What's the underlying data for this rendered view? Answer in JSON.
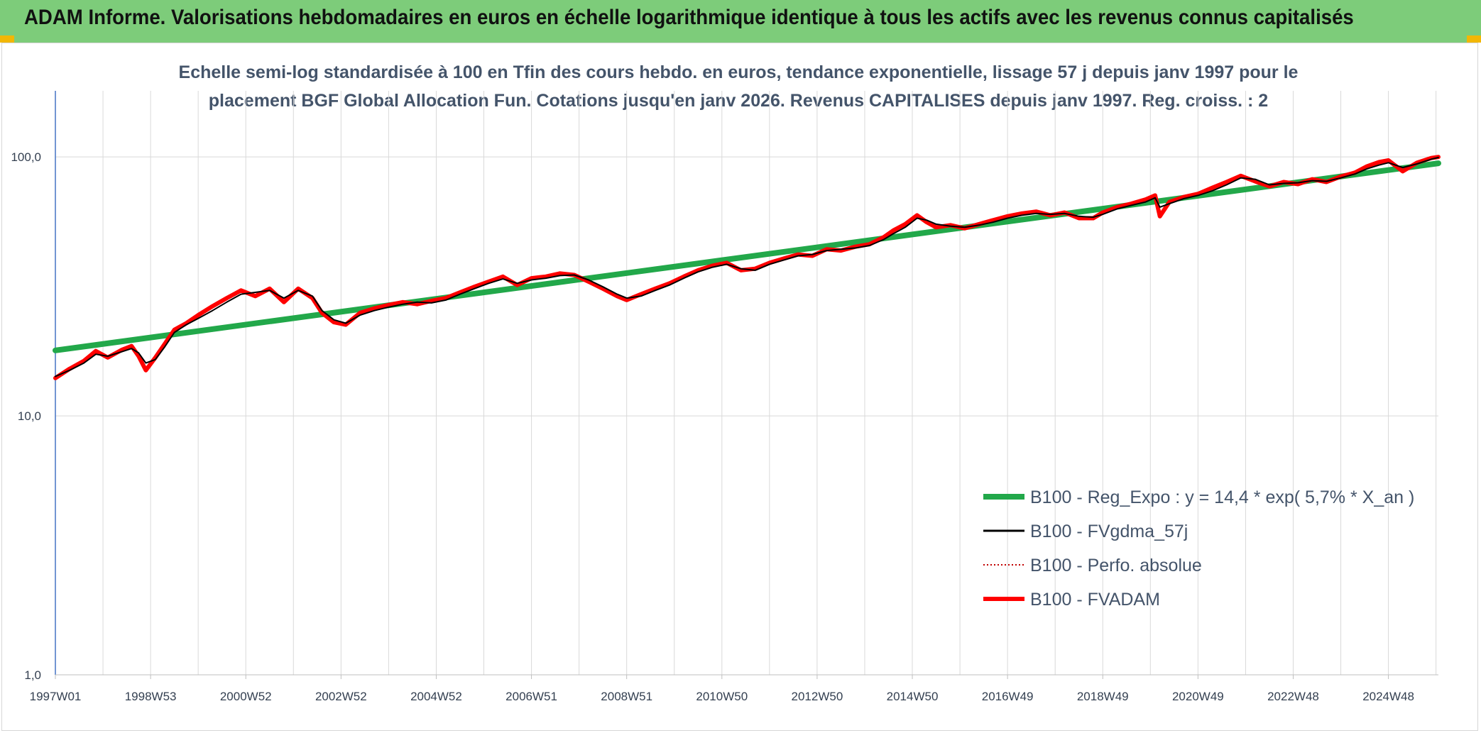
{
  "header": {
    "title": "ADAM Informe. Valorisations hebdomadaires en euros en échelle logarithmique identique à tous les actifs avec les revenus connus capitalisés"
  },
  "colors": {
    "banner": "#7dcc7a",
    "regression": "#22a84a",
    "smoothed": "#000000",
    "absolute": "#c00000",
    "fvadam": "#ff0000",
    "gridline": "#d9d9d9",
    "axis_text": "#333f50",
    "subtitle_text": "#44546a"
  },
  "chart_data": {
    "type": "line",
    "subtitle_lines": [
      "Echelle semi-log standardisée à 100 en Tfin des cours hebdo. en euros, tendance exponentielle, lissage 57 j depuis janv 1997 pour le",
      "placement BGF Global Allocation Fun. Cotations jusqu'en janv 2026. Revenus CAPITALISES depuis janv 1997. Reg. croiss. : 2"
    ],
    "y_scale": "log",
    "ylim": [
      1,
      180
    ],
    "y_ticks": [
      {
        "value": 1,
        "label": "1,0"
      },
      {
        "value": 10,
        "label": "10,0"
      },
      {
        "value": 100,
        "label": "100,0"
      }
    ],
    "x_range": [
      1997.0,
      2026.05
    ],
    "x_tick_labels": [
      "1997W01",
      "1998W53",
      "2000W52",
      "2002W52",
      "2004W52",
      "2006W51",
      "2008W51",
      "2010W50",
      "2012W50",
      "2014W50",
      "2016W49",
      "2018W49",
      "2020W49",
      "2022W48",
      "2024W48"
    ],
    "x_tick_years": [
      1997.0,
      1999.0,
      2001.0,
      2003.0,
      2005.0,
      2007.0,
      2009.0,
      2011.0,
      2013.0,
      2015.0,
      2017.0,
      2019.0,
      2021.0,
      2023.0,
      2025.0
    ],
    "grid": true,
    "legend_position": "bottom-right",
    "series": [
      {
        "key": "reg",
        "name": "B100 - Reg_Expo : y = 14,4 * exp( 5,7% *  X_an )",
        "style": "solid-thick",
        "x": [
          1997.0,
          2026.05
        ],
        "y": [
          17.9,
          94.5
        ]
      },
      {
        "key": "fvgdma",
        "name": "B100 - FVgdma_57j",
        "style": "solid-thin",
        "x": [
          1997.0,
          1997.3,
          1997.6,
          1997.85,
          1998.1,
          1998.4,
          1998.6,
          1998.75,
          1998.9,
          1999.1,
          1999.3,
          1999.5,
          1999.75,
          2000.0,
          2000.3,
          2000.6,
          2000.9,
          2001.2,
          2001.5,
          2001.8,
          2002.1,
          2002.4,
          2002.6,
          2002.85,
          2003.1,
          2003.4,
          2003.7,
          2004.0,
          2004.3,
          2004.6,
          2004.9,
          2005.2,
          2005.5,
          2005.8,
          2006.1,
          2006.4,
          2006.7,
          2007.0,
          2007.3,
          2007.6,
          2007.9,
          2008.2,
          2008.5,
          2008.8,
          2009.0,
          2009.3,
          2009.6,
          2009.9,
          2010.2,
          2010.5,
          2010.8,
          2011.1,
          2011.4,
          2011.7,
          2012.0,
          2012.3,
          2012.6,
          2012.9,
          2013.2,
          2013.5,
          2013.8,
          2014.1,
          2014.4,
          2014.6,
          2014.85,
          2015.1,
          2015.3,
          2015.5,
          2015.8,
          2016.1,
          2016.4,
          2016.7,
          2017.0,
          2017.3,
          2017.6,
          2017.9,
          2018.2,
          2018.5,
          2018.8,
          2019.0,
          2019.3,
          2019.6,
          2019.9,
          2020.1,
          2020.2,
          2020.4,
          2020.7,
          2021.0,
          2021.3,
          2021.6,
          2021.9,
          2022.2,
          2022.5,
          2022.8,
          2023.1,
          2023.4,
          2023.7,
          2024.0,
          2024.3,
          2024.55,
          2024.8,
          2025.0,
          2025.3,
          2025.6,
          2025.9,
          2026.05
        ],
        "y": [
          14.2,
          15.0,
          16.0,
          17.3,
          17.0,
          17.7,
          18.2,
          17.5,
          16.0,
          16.5,
          18.5,
          21.0,
          22.5,
          23.8,
          25.5,
          27.5,
          29.5,
          30.0,
          30.5,
          28.5,
          30.5,
          29.0,
          25.5,
          23.5,
          22.8,
          24.5,
          25.5,
          26.3,
          27.0,
          27.5,
          27.3,
          28.0,
          29.5,
          31.0,
          32.5,
          33.8,
          32.5,
          33.5,
          34.0,
          34.8,
          35.0,
          33.5,
          31.5,
          29.5,
          28.5,
          29.0,
          30.5,
          32.0,
          34.0,
          36.0,
          37.5,
          38.5,
          37.0,
          36.5,
          38.5,
          40.0,
          41.5,
          42.0,
          43.5,
          44.0,
          44.5,
          45.5,
          48.0,
          50.5,
          53.5,
          58.0,
          57.0,
          55.0,
          54.0,
          53.5,
          54.5,
          56.0,
          58.0,
          59.5,
          60.5,
          60.0,
          60.5,
          59.0,
          58.5,
          60.0,
          63.0,
          65.0,
          67.0,
          69.5,
          64.0,
          66.0,
          69.0,
          71.0,
          74.0,
          78.0,
          83.0,
          82.0,
          78.0,
          79.0,
          79.5,
          81.0,
          80.5,
          83.0,
          86.0,
          90.0,
          93.0,
          95.0,
          91.0,
          94.0,
          98.0,
          99.5
        ]
      },
      {
        "key": "perfo",
        "name": "B100 - Perfo. absolue",
        "style": "dotted",
        "x": [],
        "y": []
      },
      {
        "key": "fvadam",
        "name": "B100 - FVADAM",
        "style": "solid-thick",
        "x": [
          1997.0,
          1997.3,
          1997.6,
          1997.85,
          1998.1,
          1998.4,
          1998.6,
          1998.75,
          1998.9,
          1999.1,
          1999.3,
          1999.5,
          1999.75,
          2000.0,
          2000.3,
          2000.6,
          2000.9,
          2001.2,
          2001.5,
          2001.8,
          2002.1,
          2002.4,
          2002.6,
          2002.85,
          2003.1,
          2003.4,
          2003.7,
          2004.0,
          2004.3,
          2004.6,
          2004.9,
          2005.2,
          2005.5,
          2005.8,
          2006.1,
          2006.4,
          2006.7,
          2007.0,
          2007.3,
          2007.6,
          2007.9,
          2008.2,
          2008.5,
          2008.8,
          2009.0,
          2009.3,
          2009.6,
          2009.9,
          2010.2,
          2010.5,
          2010.8,
          2011.1,
          2011.4,
          2011.7,
          2012.0,
          2012.3,
          2012.6,
          2012.9,
          2013.2,
          2013.5,
          2013.8,
          2014.1,
          2014.4,
          2014.6,
          2014.85,
          2015.1,
          2015.3,
          2015.5,
          2015.8,
          2016.1,
          2016.4,
          2016.7,
          2017.0,
          2017.3,
          2017.6,
          2017.9,
          2018.2,
          2018.5,
          2018.8,
          2019.0,
          2019.3,
          2019.6,
          2019.9,
          2020.1,
          2020.2,
          2020.4,
          2020.7,
          2021.0,
          2021.3,
          2021.6,
          2021.9,
          2022.2,
          2022.5,
          2022.8,
          2023.1,
          2023.4,
          2023.7,
          2024.0,
          2024.3,
          2024.55,
          2024.8,
          2025.0,
          2025.3,
          2025.6,
          2025.9,
          2026.05
        ],
        "y": [
          14.0,
          15.2,
          16.3,
          17.8,
          16.8,
          18.0,
          18.6,
          17.0,
          15.0,
          16.8,
          19.0,
          21.5,
          22.8,
          24.5,
          26.5,
          28.5,
          30.5,
          29.0,
          31.0,
          27.5,
          31.0,
          28.5,
          25.0,
          23.0,
          22.5,
          25.0,
          26.0,
          26.8,
          27.5,
          27.0,
          27.8,
          28.5,
          30.0,
          31.5,
          33.0,
          34.5,
          32.0,
          34.0,
          34.5,
          35.5,
          35.0,
          33.0,
          31.0,
          29.0,
          28.0,
          29.5,
          31.0,
          32.5,
          34.5,
          36.5,
          38.0,
          39.0,
          36.5,
          37.0,
          39.0,
          40.5,
          42.0,
          41.5,
          44.0,
          43.5,
          45.0,
          46.0,
          49.0,
          52.0,
          55.0,
          59.5,
          56.0,
          53.5,
          54.5,
          53.0,
          55.0,
          57.0,
          59.0,
          60.5,
          61.5,
          59.5,
          61.0,
          58.0,
          58.0,
          61.0,
          64.0,
          66.0,
          68.5,
          71.0,
          59.0,
          67.0,
          70.0,
          72.0,
          76.0,
          80.0,
          84.5,
          80.5,
          77.0,
          80.0,
          78.5,
          82.0,
          80.0,
          84.0,
          87.0,
          92.0,
          95.5,
          97.0,
          88.0,
          95.0,
          99.0,
          100.0
        ]
      }
    ]
  }
}
